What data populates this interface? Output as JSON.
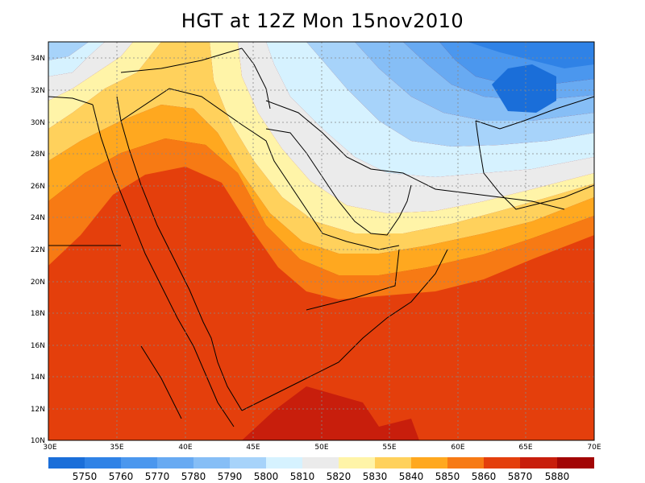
{
  "title": "HGT at 12Z Mon 15nov2010",
  "map": {
    "lon_range": [
      30,
      70
    ],
    "lat_range": [
      10,
      35
    ],
    "lat_ticks": [
      "10N",
      "12N",
      "14N",
      "16N",
      "18N",
      "20N",
      "22N",
      "24N",
      "26N",
      "28N",
      "30N",
      "32N",
      "34N"
    ],
    "lon_ticks": [
      "30E",
      "35E",
      "40E",
      "45E",
      "50E",
      "55E",
      "60E",
      "65E",
      "70E"
    ],
    "grid": "dotted"
  },
  "colorbar": {
    "levels": [
      "5750",
      "5760",
      "5770",
      "5780",
      "5790",
      "5800",
      "5810",
      "5820",
      "5830",
      "5840",
      "5850",
      "5860",
      "5870",
      "5880"
    ],
    "colors": [
      "#1a6ed9",
      "#2f82e6",
      "#4b97ee",
      "#68aaf2",
      "#86bef6",
      "#a7d3fa",
      "#d6f2ff",
      "#ebebeb",
      "#fff4a8",
      "#ffd15c",
      "#ffa81f",
      "#f77a14",
      "#e43f0c",
      "#c81e0c",
      "#a20505"
    ]
  }
}
